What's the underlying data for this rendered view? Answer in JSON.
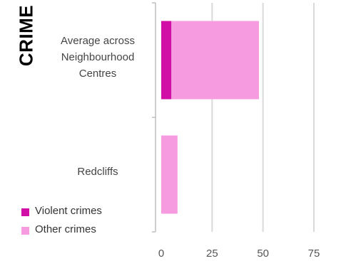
{
  "colors": {
    "violent": "#d10fa6",
    "other": "#f79be0",
    "grid": "#d9d9d9",
    "axis": "#bfbfbf"
  },
  "chart_data": {
    "type": "bar",
    "orientation": "horizontal",
    "stacked": true,
    "title": "CRIME",
    "categories": [
      "Average across\nNeighbourhood\nCentres",
      "Redcliffs"
    ],
    "series": [
      {
        "name": "Violent crimes",
        "values": [
          5,
          0
        ]
      },
      {
        "name": "Other crimes",
        "values": [
          43,
          8
        ]
      }
    ],
    "xlim": [
      0,
      75
    ],
    "xticks": [
      0,
      25,
      50,
      75
    ],
    "grid": true,
    "legend_position": "bottom-left"
  }
}
